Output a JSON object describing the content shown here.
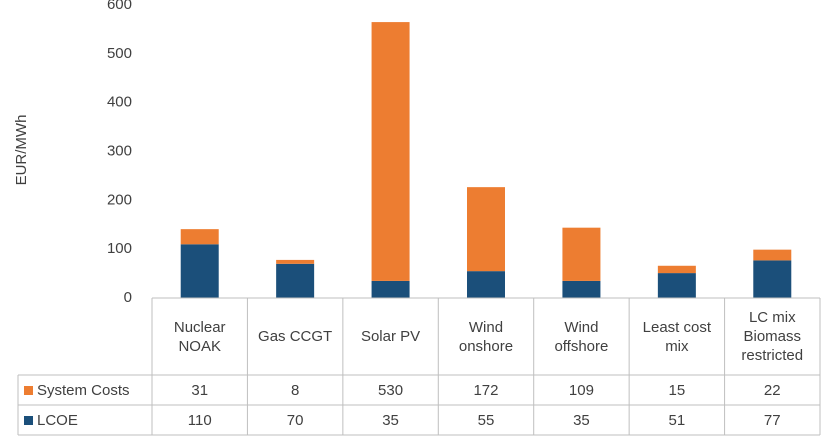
{
  "chart_data": {
    "type": "bar",
    "stacked": true,
    "y_label": "EUR/MWh",
    "categories": [
      "Nuclear NOAK",
      "Gas CCGT",
      "Solar PV",
      "Wind onshore",
      "Wind offshore",
      "Least cost mix",
      "LC mix Biomass restricted"
    ],
    "series": [
      {
        "name": "System Costs",
        "color": "#ed7d31",
        "values": [
          31,
          8,
          530,
          172,
          109,
          15,
          22
        ]
      },
      {
        "name": "LCOE",
        "color": "#1b4f7a",
        "values": [
          110,
          70,
          35,
          55,
          35,
          51,
          77
        ]
      }
    ],
    "ylim": [
      0,
      600
    ],
    "yticks": [
      0,
      100,
      200,
      300,
      400,
      500,
      600
    ],
    "grid": false
  }
}
